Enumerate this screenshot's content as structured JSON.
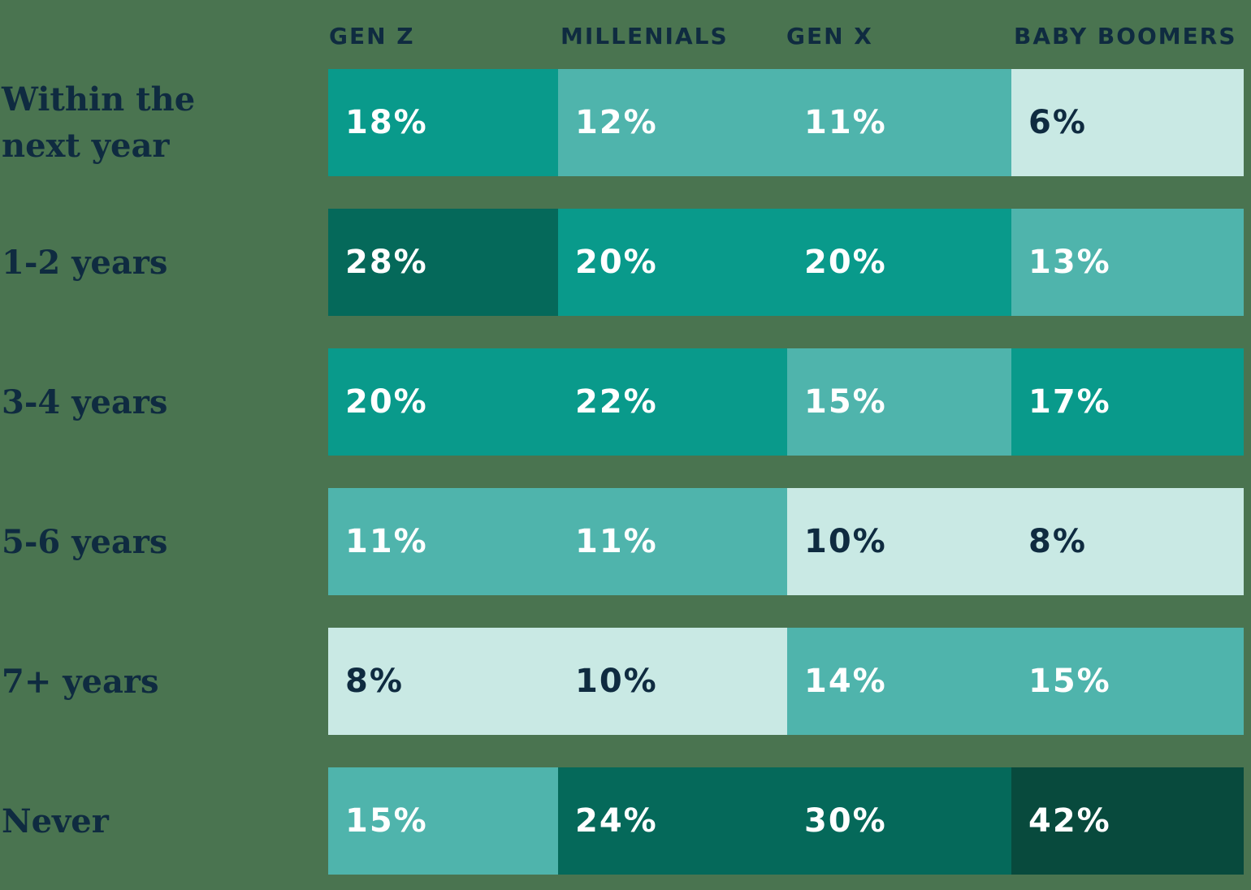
{
  "colors": {
    "background": "#4a7450",
    "text_navy": "#0f2b40",
    "text_on_dark_cells": "#ffffff"
  },
  "chart_data": {
    "type": "heatmap",
    "title": "",
    "unit": "%",
    "legend": "none",
    "categories": [
      "GEN Z",
      "MILLENIALS",
      "GEN X",
      "BABY BOOMERS"
    ],
    "rows": [
      {
        "label": "Within the next year",
        "label_lines": [
          "Within the",
          "next year"
        ],
        "values": [
          18,
          12,
          11,
          6
        ]
      },
      {
        "label": "1-2 years",
        "label_lines": [
          "1-2 years"
        ],
        "values": [
          28,
          20,
          20,
          13
        ]
      },
      {
        "label": "3-4 years",
        "label_lines": [
          "3-4 years"
        ],
        "values": [
          20,
          22,
          15,
          17
        ]
      },
      {
        "label": "5-6 years",
        "label_lines": [
          "5-6 years"
        ],
        "values": [
          11,
          11,
          10,
          8
        ]
      },
      {
        "label": "7+ years",
        "label_lines": [
          "7+ years"
        ],
        "values": [
          8,
          10,
          14,
          15
        ]
      },
      {
        "label": "Never",
        "label_lines": [
          "Never"
        ],
        "values": [
          15,
          24,
          30,
          42
        ]
      }
    ],
    "color_scale": [
      {
        "max": 10,
        "color": "#c9e9e4",
        "text_color": "#0f2b40",
        "name": "mint"
      },
      {
        "max": 15,
        "color": "#4fb4ac",
        "text_color": "#ffffff",
        "name": "light-teal"
      },
      {
        "max": 22,
        "color": "#099a8b",
        "text_color": "#ffffff",
        "name": "mid-teal"
      },
      {
        "max": 30,
        "color": "#05695a",
        "text_color": "#ffffff",
        "name": "dark-teal"
      },
      {
        "max": 100,
        "color": "#084a3d",
        "text_color": "#ffffff",
        "name": "darkest-teal"
      }
    ]
  }
}
